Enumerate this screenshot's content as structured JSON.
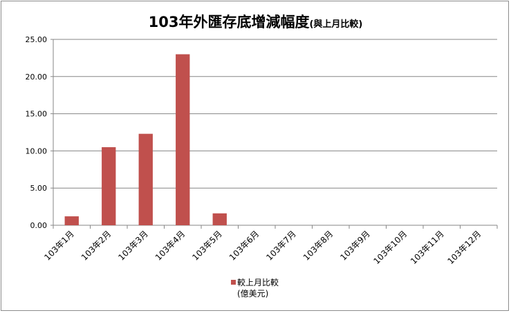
{
  "chart_data": {
    "type": "bar",
    "title": "103年外匯存底增減幅度",
    "subtitle": "(與上月比較)",
    "categories": [
      "103年1月",
      "103年2月",
      "103年3月",
      "103年4月",
      "103年5月",
      "103年6月",
      "103年7月",
      "103年8月",
      "103年9月",
      "103年10月",
      "103年11月",
      "103年12月"
    ],
    "series": [
      {
        "name": "較上月比較",
        "unit_label": "(億美元)",
        "color": "#c0504d",
        "values": [
          1.2,
          10.5,
          12.3,
          23.0,
          1.6,
          null,
          null,
          null,
          null,
          null,
          null,
          null
        ]
      }
    ],
    "ylim": [
      0,
      25
    ],
    "yticks": [
      "0.00",
      "5.00",
      "10.00",
      "15.00",
      "20.00",
      "25.00"
    ],
    "grid": true,
    "legend_position": "bottom"
  }
}
